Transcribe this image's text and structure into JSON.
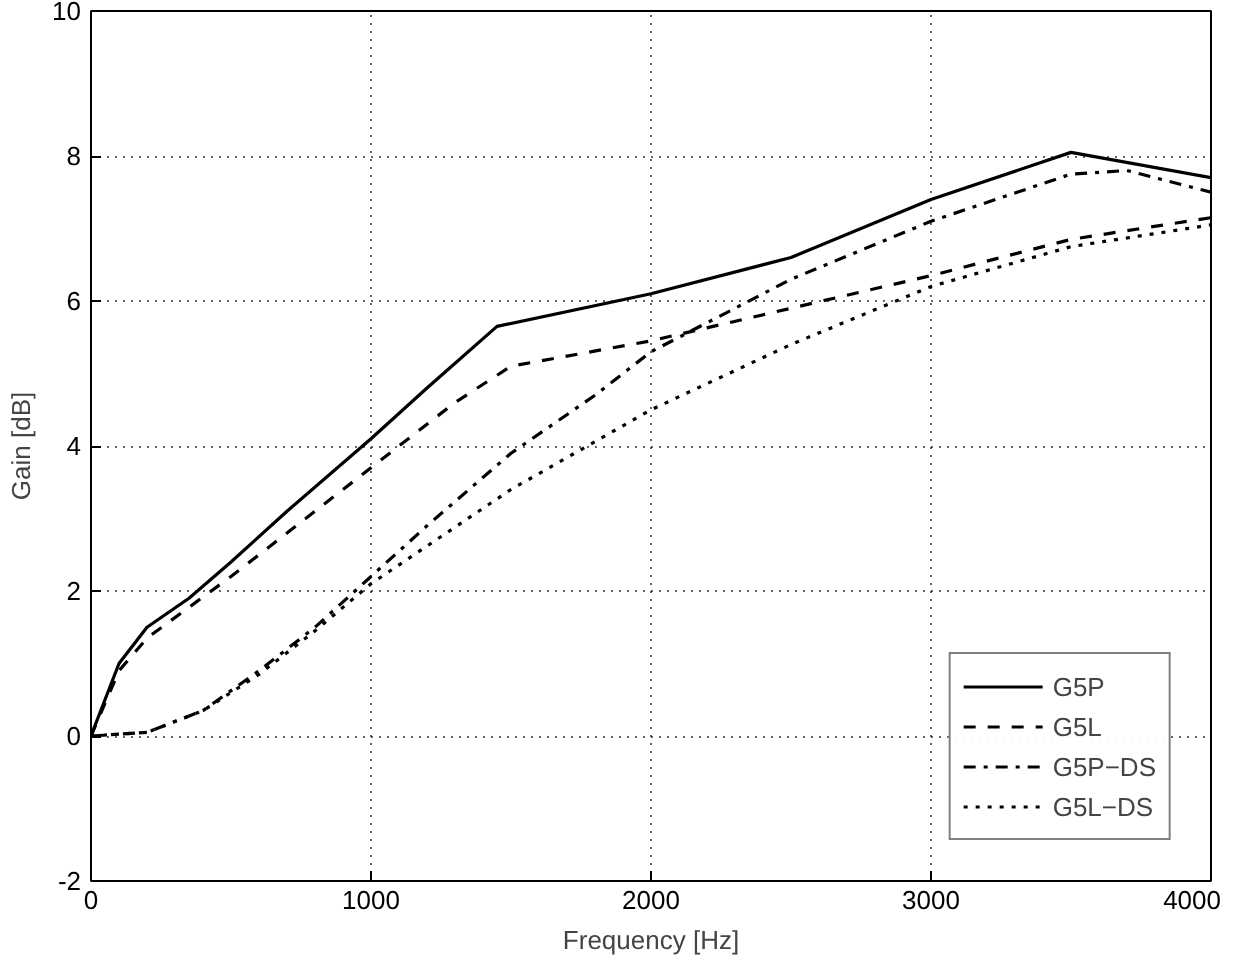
{
  "chart_data": {
    "type": "line",
    "xlabel": "Frequency [Hz]",
    "ylabel": "Gain [dB]",
    "xlim": [
      0,
      4000
    ],
    "xticks": [
      0,
      1000,
      2000,
      3000,
      4000
    ],
    "ylim": [
      -2,
      10
    ],
    "yticks": [
      -2,
      0,
      2,
      4,
      6,
      8,
      10
    ],
    "grid": true,
    "legend": "bottom right",
    "series": [
      {
        "name": "G5P",
        "color": "#000000",
        "line_style": "solid",
        "x": [
          0,
          100,
          200,
          350,
          500,
          700,
          1000,
          1200,
          1450,
          2000,
          2500,
          3000,
          3500,
          4000
        ],
        "values": [
          0,
          1.0,
          1.5,
          1.9,
          2.4,
          3.1,
          4.1,
          4.8,
          5.65,
          6.1,
          6.6,
          7.4,
          8.05,
          7.7
        ]
      },
      {
        "name": "G5L",
        "color": "#000000",
        "line_style": "dashed",
        "x": [
          0,
          100,
          200,
          500,
          700,
          1000,
          1300,
          1500,
          2000,
          2500,
          3000,
          3500,
          4000
        ],
        "values": [
          0,
          0.9,
          1.35,
          2.2,
          2.8,
          3.7,
          4.6,
          5.1,
          5.45,
          5.9,
          6.35,
          6.85,
          7.15
        ]
      },
      {
        "name": "G5P−DS",
        "color": "#000000",
        "line_style": "dashdot",
        "x": [
          0,
          200,
          400,
          600,
          800,
          1000,
          1200,
          1500,
          1800,
          2000,
          2500,
          3000,
          3500,
          3700,
          4000
        ],
        "values": [
          0,
          0.05,
          0.35,
          0.9,
          1.5,
          2.2,
          2.9,
          3.9,
          4.7,
          5.3,
          6.3,
          7.1,
          7.75,
          7.8,
          7.5
        ]
      },
      {
        "name": "G5L−DS",
        "color": "#000000",
        "line_style": "dotted",
        "x": [
          0,
          200,
          400,
          600,
          800,
          1000,
          1500,
          2000,
          2500,
          3000,
          3500,
          4000
        ],
        "values": [
          0,
          0.05,
          0.35,
          0.85,
          1.45,
          2.1,
          3.4,
          4.5,
          5.4,
          6.2,
          6.75,
          7.05
        ]
      }
    ]
  }
}
